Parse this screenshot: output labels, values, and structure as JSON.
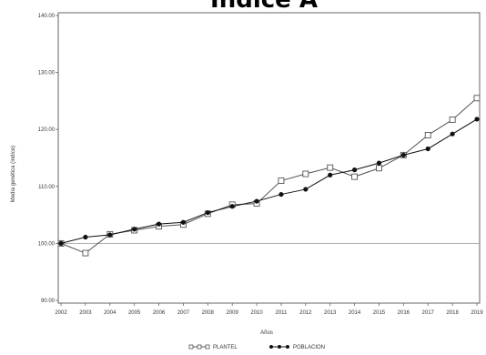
{
  "chart_data": {
    "type": "line",
    "title": "Indice A",
    "xlabel": "Años",
    "ylabel": "Media genética (índice)",
    "x": [
      "2002",
      "2003",
      "2004",
      "2005",
      "2006",
      "2007",
      "2008",
      "2009",
      "2010",
      "2011",
      "2012",
      "2013",
      "2014",
      "2015",
      "2016",
      "2017",
      "2018",
      "2019"
    ],
    "yticks": [
      "90.00",
      "100.00",
      "110.00",
      "120.00",
      "130.00",
      "140.00"
    ],
    "ylim": [
      90,
      140
    ],
    "reference_line": 100,
    "series": [
      {
        "name": "PLANTEL",
        "marker": "square",
        "color": "#555555",
        "values": [
          100.0,
          98.3,
          101.6,
          102.3,
          103.0,
          103.3,
          105.2,
          106.8,
          107.0,
          111.0,
          112.2,
          113.3,
          111.7,
          113.2,
          115.5,
          119.0,
          121.7,
          125.5
        ]
      },
      {
        "name": "POBLACION",
        "marker": "circle",
        "color": "#111111",
        "values": [
          100.0,
          101.1,
          101.5,
          102.5,
          103.4,
          103.7,
          105.4,
          106.5,
          107.4,
          108.6,
          109.5,
          112.0,
          112.9,
          114.1,
          115.5,
          116.6,
          119.2,
          121.8
        ]
      }
    ],
    "grid": false,
    "legend": "bottom"
  }
}
